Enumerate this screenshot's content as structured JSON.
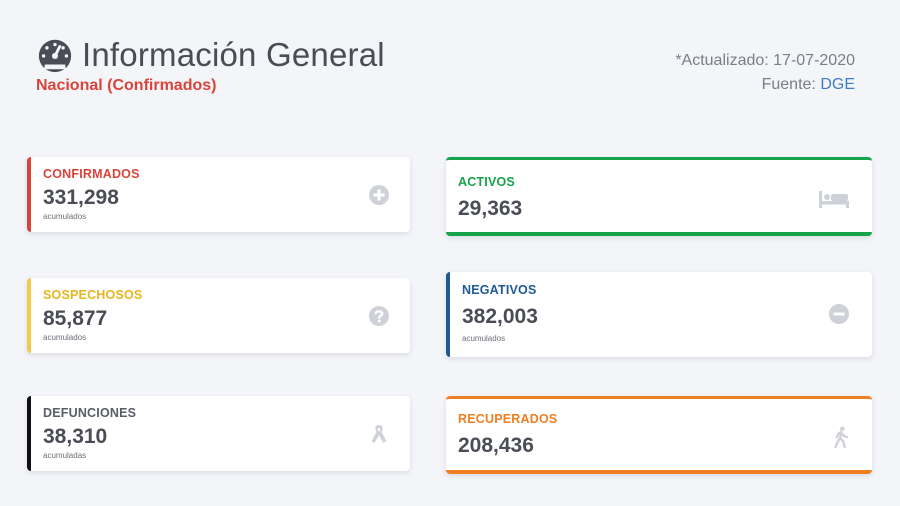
{
  "header": {
    "title": "Información General",
    "subtitle": "Nacional (Confirmados)",
    "updated": "*Actualizado: 17-07-2020",
    "source_label": "Fuente:",
    "source_link": "DGE"
  },
  "colors": {
    "confirmados": "#d9443a",
    "sospechosos": "#f2c94c",
    "defunciones": "#111111",
    "activos": "#16a34a",
    "negativos": "#1e5a94",
    "recuperados": "#ee7f22"
  },
  "cards": {
    "confirmados": {
      "label": "CONFIRMADOS",
      "value": "331,298",
      "sub": "acumulados",
      "icon": "plus-circle-icon"
    },
    "sospechosos": {
      "label": "SOSPECHOSOS",
      "value": "85,877",
      "sub": "acumulados",
      "icon": "question-circle-icon"
    },
    "defunciones": {
      "label": "DEFUNCIONES",
      "value": "38,310",
      "sub": "acumuladas",
      "icon": "ribbon-icon"
    },
    "activos": {
      "label": "ACTIVOS",
      "value": "29,363",
      "icon": "bed-icon"
    },
    "negativos": {
      "label": "NEGATIVOS",
      "value": "382,003",
      "sub": "acumulados",
      "icon": "minus-circle-icon"
    },
    "recuperados": {
      "label": "RECUPERADOS",
      "value": "208,436",
      "icon": "walking-icon"
    }
  }
}
